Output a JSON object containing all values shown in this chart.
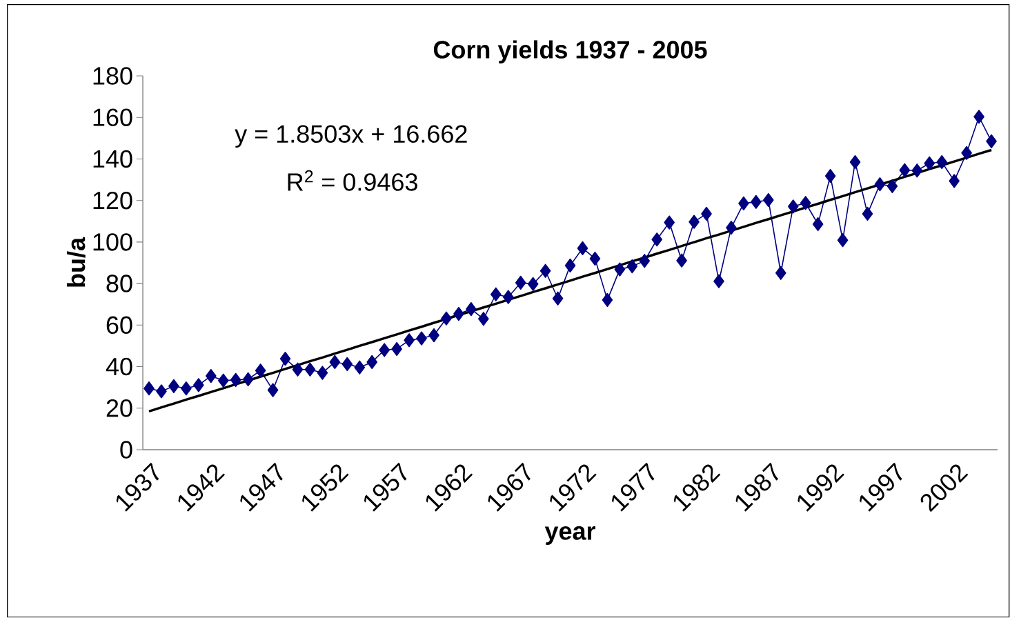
{
  "chart_data": {
    "type": "line",
    "title": "Corn yields 1937 - 2005",
    "xlabel": "year",
    "ylabel": "bu/a",
    "categories": [
      "1937",
      null,
      null,
      null,
      null,
      "1942",
      null,
      null,
      null,
      null,
      "1947",
      null,
      null,
      null,
      null,
      "1952",
      null,
      null,
      null,
      null,
      "1957",
      null,
      null,
      null,
      null,
      "1962",
      null,
      null,
      null,
      null,
      "1967",
      null,
      null,
      null,
      null,
      "1972",
      null,
      null,
      null,
      null,
      "1977",
      null,
      null,
      null,
      null,
      "1982",
      null,
      null,
      null,
      null,
      "1987",
      null,
      null,
      null,
      null,
      "1992",
      null,
      null,
      null,
      null,
      "1997",
      null,
      null,
      null,
      null,
      "2002",
      null,
      null,
      null
    ],
    "series": [
      {
        "color": "#000080",
        "values": [
          29.5,
          28.1,
          30.6,
          29.5,
          31.1,
          35.5,
          33.3,
          33.6,
          33.9,
          38.1,
          28.7,
          43.8,
          38.6,
          38.6,
          37.0,
          42.2,
          41.2,
          39.6,
          42.2,
          48.0,
          48.5,
          52.7,
          53.6,
          55.1,
          63.2,
          65.4,
          67.7,
          63.0,
          74.8,
          73.5,
          80.4,
          79.8,
          86.1,
          72.8,
          88.7,
          97.0,
          92.0,
          72.1,
          86.8,
          88.3,
          90.9,
          101.2,
          109.4,
          91.1,
          109.7,
          113.6,
          81.1,
          106.9,
          118.6,
          119.3,
          120.2,
          85.1,
          117.1,
          118.8,
          108.6,
          131.8,
          100.9,
          138.5,
          113.6,
          127.8,
          126.9,
          134.6,
          134.4,
          137.9,
          138.5,
          129.4,
          142.9,
          160.3,
          148.5
        ]
      },
      {
        "type": "line",
        "color": "#000000",
        "marker": "none",
        "values": [
          18.5,
          20.4,
          22.2,
          24.1,
          25.9,
          27.8,
          29.6,
          31.5,
          33.3,
          35.2,
          37.0,
          38.9,
          40.7,
          42.6,
          44.4,
          46.3,
          48.1,
          50.0,
          51.8,
          53.7,
          55.5,
          57.4,
          59.2,
          61.1,
          62.9,
          64.8,
          66.6,
          68.5,
          70.3,
          72.2,
          74.0,
          75.9,
          77.7,
          79.6,
          81.4,
          83.3,
          85.1,
          87.0,
          88.8,
          90.7,
          92.5,
          94.4,
          96.2,
          98.1,
          99.9,
          101.8,
          103.6,
          105.5,
          107.3,
          109.2,
          111.0,
          112.9,
          114.7,
          116.6,
          118.4,
          120.3,
          122.1,
          124.0,
          125.8,
          127.7,
          129.5,
          131.4,
          133.2,
          135.1,
          136.9,
          138.8,
          140.6,
          142.5,
          144.3
        ]
      }
    ],
    "ylim": [
      0,
      180
    ],
    "yticks": [
      0,
      20,
      40,
      60,
      80,
      100,
      120,
      140,
      160,
      180
    ],
    "marker": "diamond",
    "annotations": [
      "y = 1.8503x + 16.662",
      "R$^{2}$ = 0.9463"
    ]
  }
}
